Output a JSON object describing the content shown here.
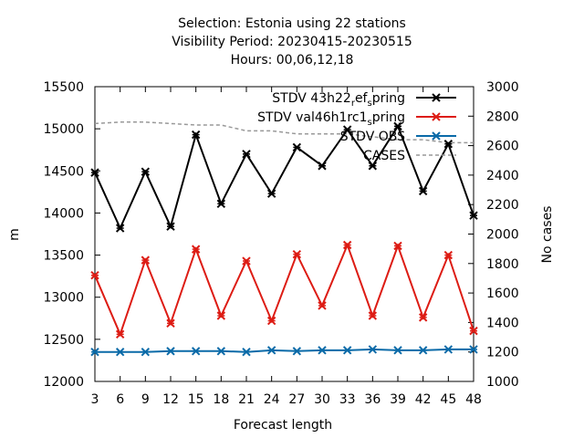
{
  "title": {
    "line1": "Selection: Estonia using    22 stations",
    "line2": "Visibility   Period: 20230415-20230515",
    "line3": "Hours:  00,06,12,18"
  },
  "chart_data": {
    "type": "line",
    "xlabel": "Forecast length",
    "ylabel": "m",
    "y2label": "No cases",
    "x": [
      3,
      6,
      9,
      12,
      15,
      18,
      21,
      24,
      27,
      30,
      33,
      36,
      39,
      42,
      45,
      48
    ],
    "xlim": [
      3,
      48
    ],
    "ylim": [
      12000,
      15500
    ],
    "y2lim": [
      1000,
      3000
    ],
    "yticks": [
      12000,
      12500,
      13000,
      13500,
      14000,
      14500,
      15000,
      15500
    ],
    "y2ticks": [
      1000,
      1200,
      1400,
      1600,
      1800,
      2000,
      2200,
      2400,
      2600,
      2800,
      3000
    ],
    "legend_position": "top-right",
    "series": [
      {
        "name": "STDV 43h22_ref_spring",
        "legend_text": "STDV 43h22",
        "legend_sub1": "r",
        "legend_mid": "ef",
        "legend_sub2": "s",
        "legend_tail": "pring",
        "color": "#000000",
        "marker": "x",
        "axis": "y",
        "values": [
          14480,
          13820,
          14490,
          13840,
          14930,
          14110,
          14700,
          14230,
          14780,
          14560,
          14990,
          14560,
          15030,
          14260,
          14820,
          13970
        ]
      },
      {
        "name": "STDV val46h1rc1_spring",
        "legend_text": "STDV val46h1rc1",
        "legend_sub1": "s",
        "legend_tail": "pring",
        "color": "#dd1c14",
        "marker": "x",
        "axis": "y",
        "values": [
          13260,
          12560,
          13440,
          12690,
          13570,
          12780,
          13430,
          12720,
          13510,
          12900,
          13620,
          12780,
          13610,
          12760,
          13500,
          12600
        ]
      },
      {
        "name": "STDV OBS",
        "color": "#0a6aa8",
        "marker": "x",
        "axis": "y",
        "values": [
          12350,
          12350,
          12350,
          12360,
          12360,
          12360,
          12350,
          12370,
          12360,
          12370,
          12370,
          12380,
          12370,
          12370,
          12380,
          12380
        ]
      },
      {
        "name": "CASES",
        "color": "#999999",
        "dash": true,
        "axis": "y2",
        "values": [
          2750,
          2760,
          2760,
          2750,
          2740,
          2740,
          2700,
          2700,
          2680,
          2680,
          2680,
          2660,
          2640,
          2640,
          2620,
          2620
        ]
      }
    ]
  }
}
